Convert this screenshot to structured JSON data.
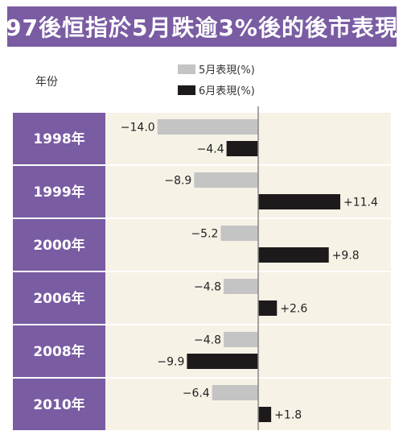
{
  "title": "97後恒指於5月跌逾3%後的後市表現",
  "legend": {
    "may_label": "5月表現(%)",
    "june_label": "6月表現(%)"
  },
  "column_header": "年份",
  "colors": {
    "title_bg": "#7a5ca3",
    "year_cell": "#7a5ca3",
    "may_bar": "#c4c4c4",
    "june_bar": "#1e1a1b",
    "row_bg": "#f6f2e6",
    "axis": "#888888"
  },
  "chart_data": {
    "type": "bar",
    "orientation": "horizontal",
    "categories": [
      "1998年",
      "1999年",
      "2000年",
      "2006年",
      "2008年",
      "2010年"
    ],
    "series": [
      {
        "name": "5月表現(%)",
        "values": [
          -14.0,
          -8.9,
          -5.2,
          -4.8,
          -4.8,
          -6.4
        ],
        "labels": [
          "−14.0",
          "−8.9",
          "−5.2",
          "−4.8",
          "−4.8",
          "−6.4"
        ]
      },
      {
        "name": "6月表現(%)",
        "values": [
          -4.4,
          11.4,
          9.8,
          2.6,
          -9.9,
          1.8
        ],
        "labels": [
          "−4.4",
          "+11.4",
          "+9.8",
          "+2.6",
          "−9.9",
          "+1.8"
        ]
      }
    ]
  }
}
